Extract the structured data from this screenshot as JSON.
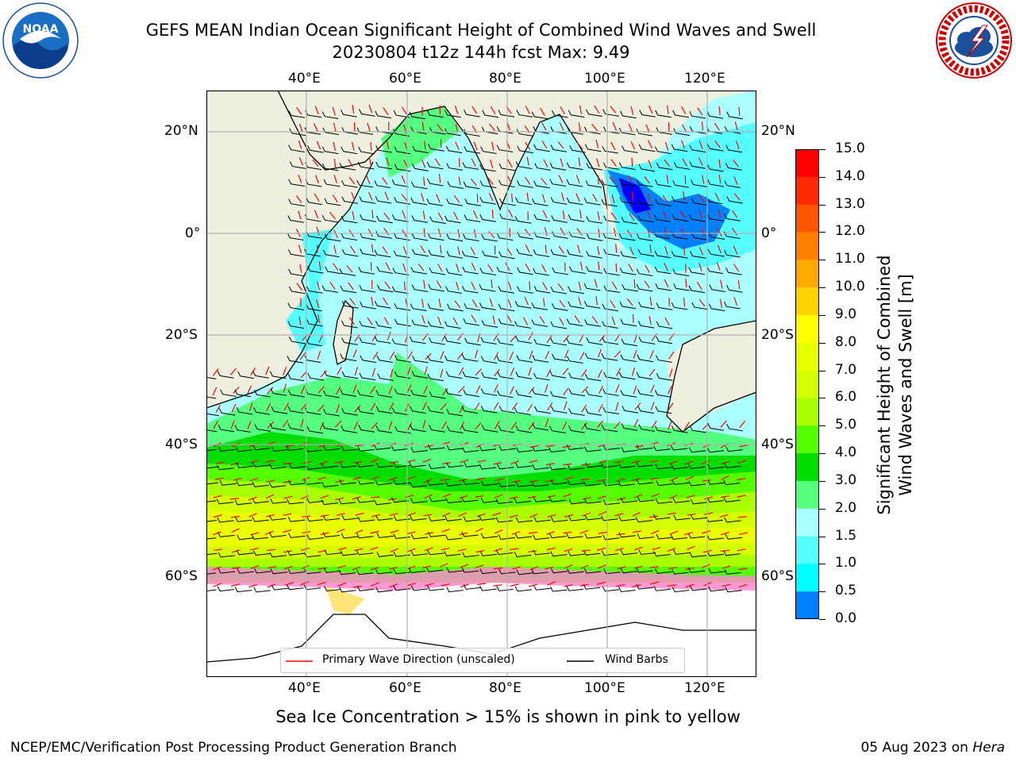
{
  "title": {
    "line1": "GEFS MEAN Indian Ocean Significant Height of Combined Wind Waves and Swell",
    "line2": "20230804 t12z 144h fcst   Max: 9.49"
  },
  "logos": {
    "left": "noaa-logo",
    "right": "nws-logo",
    "left_text": "NOAA"
  },
  "axes": {
    "lon_labels": [
      "40°E",
      "60°E",
      "80°E",
      "100°E",
      "120°E"
    ],
    "lat_labels": [
      "20°N",
      "0°",
      "20°S",
      "40°S",
      "60°S"
    ]
  },
  "legend": {
    "wave_label": "Primary Wave Direction (unscaled)",
    "barb_label": "Wind Barbs",
    "wave_color": "#ff0000",
    "barb_color": "#000000"
  },
  "colorbar": {
    "title_line1": "Significant Height of Combined",
    "title_line2": "Wind Waves and Swell [m]",
    "labels": [
      "15.0",
      "14.0",
      "13.0",
      "12.0",
      "11.0",
      "10.0",
      "9.0",
      "8.0",
      "7.0",
      "6.0",
      "5.0",
      "4.0",
      "3.0",
      "2.0",
      "1.5",
      "1.0",
      "0.5",
      "0.0"
    ],
    "colors_top_down": [
      "#ff0000",
      "#ff2a00",
      "#ff5500",
      "#ff7f00",
      "#ffaa00",
      "#ffd400",
      "#ffff00",
      "#eaff00",
      "#d4ff00",
      "#aaff00",
      "#55ff00",
      "#00dd00",
      "#55ff80",
      "#aaffff",
      "#55ffff",
      "#00ffff",
      "#0080ff",
      "#0000ff"
    ]
  },
  "caption": "Sea Ice Concentration > 15% is shown in pink to yellow",
  "credit": "NCEP/EMC/Verification Post Processing Product Generation Branch",
  "date_credit": {
    "date": "05 Aug 2023 on ",
    "host": "Hera"
  }
}
